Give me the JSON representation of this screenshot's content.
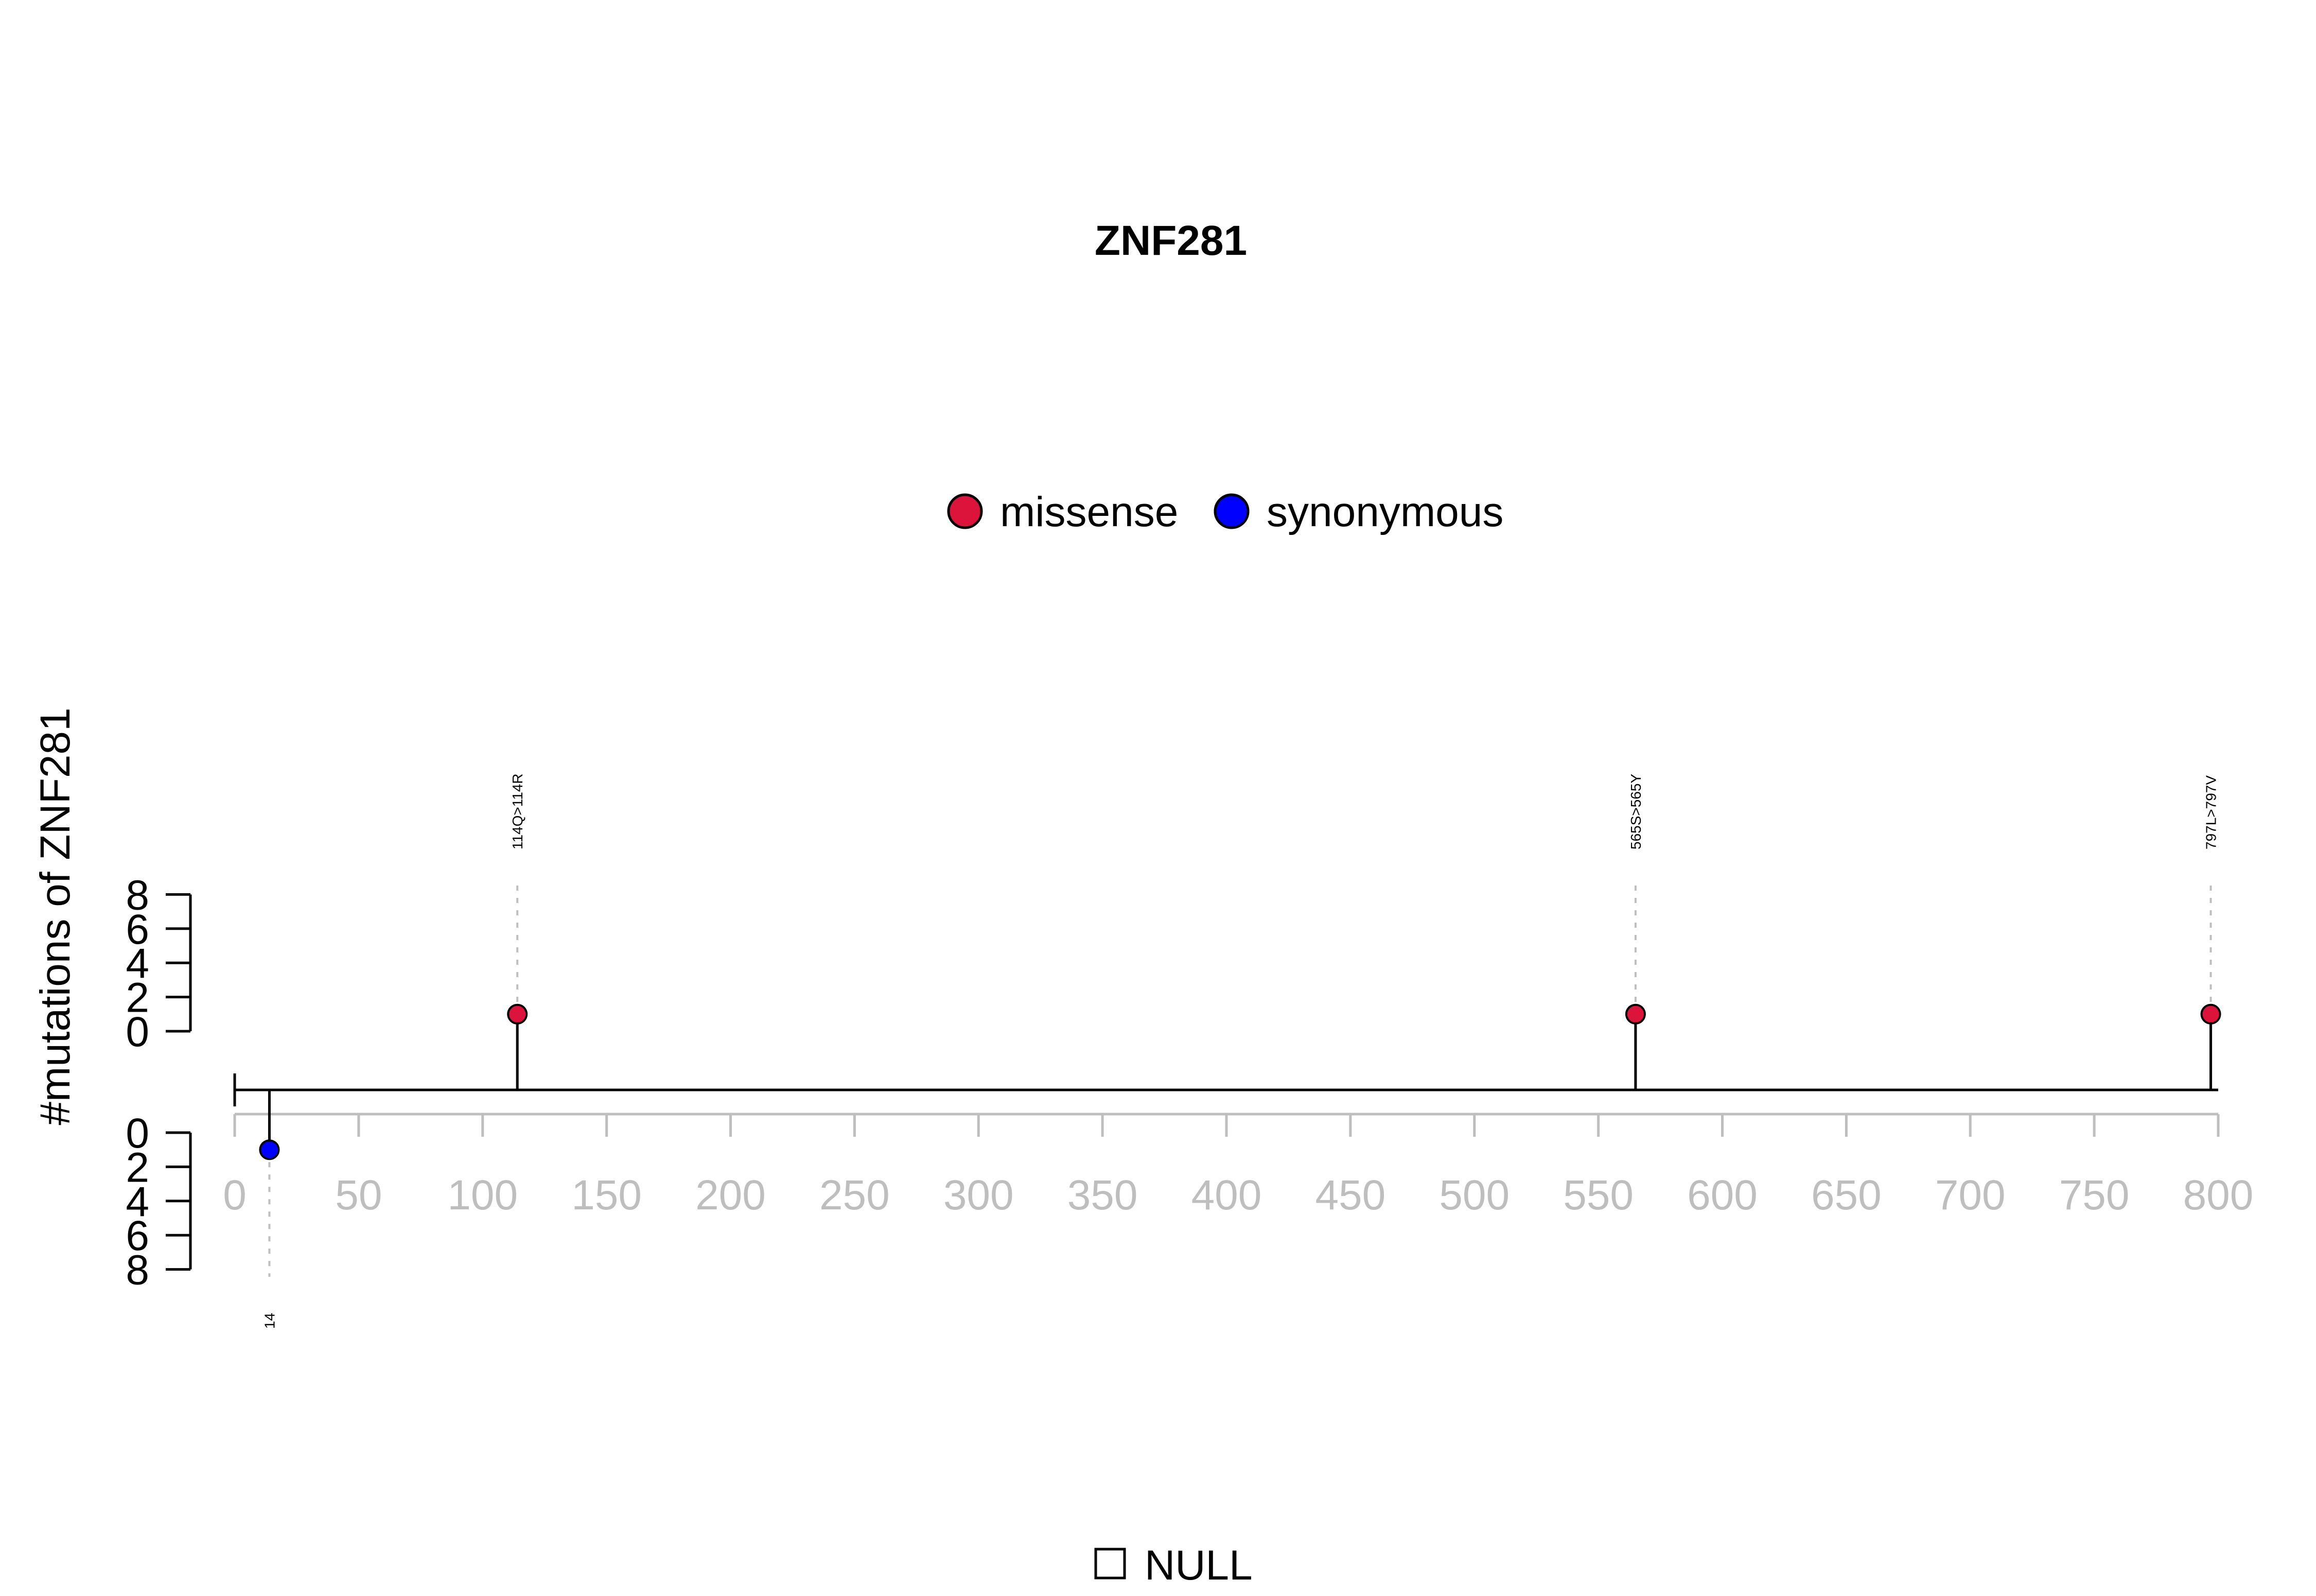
{
  "chart_data": {
    "type": "lollipop",
    "title": "ZNF281",
    "ylabel": "#mutations of ZNF281",
    "xlim": [
      0,
      800
    ],
    "x_ticks": [
      0,
      50,
      100,
      150,
      200,
      250,
      300,
      350,
      400,
      450,
      500,
      550,
      600,
      650,
      700,
      750,
      800
    ],
    "y_ticks": [
      0,
      2,
      4,
      6,
      8
    ],
    "ylim": [
      0,
      8
    ],
    "legend": {
      "placement": "top-center",
      "entries": [
        {
          "name": "missense",
          "color": "#dc143c"
        },
        {
          "name": "synonymous",
          "color": "#0000ff"
        }
      ]
    },
    "mutations": [
      {
        "position": 114,
        "count": 1,
        "type": "missense",
        "label": "114Q>114R",
        "side": "up"
      },
      {
        "position": 565,
        "count": 1,
        "type": "missense",
        "label": "565S>565Y",
        "side": "up"
      },
      {
        "position": 797,
        "count": 1,
        "type": "missense",
        "label": "797L>797V",
        "side": "up"
      },
      {
        "position": 14,
        "count": 1,
        "type": "synonymous",
        "label": "14",
        "side": "down"
      }
    ],
    "domain_legend": {
      "label": "NULL",
      "color": "#ffffff"
    }
  }
}
